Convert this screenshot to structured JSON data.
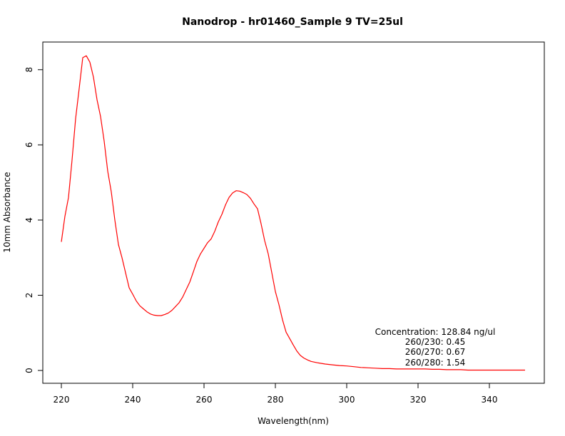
{
  "chart_data": {
    "type": "line",
    "title": "Nanodrop - hr01460_Sample 9 TV=25ul",
    "xlabel": "Wavelength(nm)",
    "ylabel": "10mm Absorbance",
    "xlim": [
      220,
      350
    ],
    "ylim": [
      0,
      8.4
    ],
    "x_ticks": [
      220,
      240,
      260,
      280,
      300,
      320,
      340
    ],
    "y_ticks": [
      0,
      2,
      4,
      6,
      8
    ],
    "grid": false,
    "series": [
      {
        "color": "#ff0000",
        "x": [
          220,
          221,
          222,
          223,
          224,
          225,
          226,
          227,
          228,
          229,
          230,
          231,
          232,
          233,
          234,
          235,
          236,
          237,
          238,
          239,
          240,
          241,
          242,
          243,
          244,
          245,
          246,
          247,
          248,
          249,
          250,
          251,
          252,
          253,
          254,
          255,
          256,
          257,
          258,
          259,
          260,
          261,
          262,
          263,
          264,
          265,
          266,
          267,
          268,
          269,
          270,
          271,
          272,
          273,
          274,
          275,
          276,
          277,
          278,
          279,
          280,
          281,
          282,
          283,
          284,
          285,
          286,
          287,
          288,
          289,
          290,
          292,
          294,
          296,
          298,
          300,
          302,
          304,
          306,
          308,
          310,
          312,
          314,
          316,
          318,
          320,
          322,
          324,
          326,
          328,
          330,
          332,
          334,
          336,
          338,
          340,
          342,
          344,
          346,
          348,
          350
        ],
        "y": [
          3.42,
          4.1,
          4.6,
          5.6,
          6.7,
          7.5,
          8.32,
          8.37,
          8.2,
          7.8,
          7.2,
          6.75,
          6.1,
          5.3,
          4.75,
          4.0,
          3.35,
          3.0,
          2.6,
          2.2,
          2.03,
          1.85,
          1.72,
          1.64,
          1.56,
          1.5,
          1.47,
          1.46,
          1.46,
          1.49,
          1.53,
          1.6,
          1.7,
          1.8,
          1.95,
          2.15,
          2.35,
          2.62,
          2.9,
          3.1,
          3.25,
          3.4,
          3.5,
          3.7,
          3.95,
          4.15,
          4.4,
          4.6,
          4.72,
          4.78,
          4.77,
          4.73,
          4.68,
          4.58,
          4.43,
          4.3,
          3.9,
          3.45,
          3.1,
          2.6,
          2.1,
          1.75,
          1.35,
          1.02,
          0.85,
          0.68,
          0.52,
          0.4,
          0.33,
          0.28,
          0.24,
          0.2,
          0.17,
          0.15,
          0.13,
          0.12,
          0.1,
          0.08,
          0.07,
          0.06,
          0.05,
          0.05,
          0.04,
          0.04,
          0.04,
          0.04,
          0.04,
          0.03,
          0.03,
          0.02,
          0.02,
          0.02,
          0.01,
          0.01,
          0.01,
          0.01,
          0.01,
          0.01,
          0.01,
          0.01,
          0.01
        ]
      }
    ],
    "annotations": [
      "Concentration: 128.84 ng/ul",
      "260/230: 0.45",
      "260/270: 0.67",
      "260/280: 1.54"
    ]
  }
}
